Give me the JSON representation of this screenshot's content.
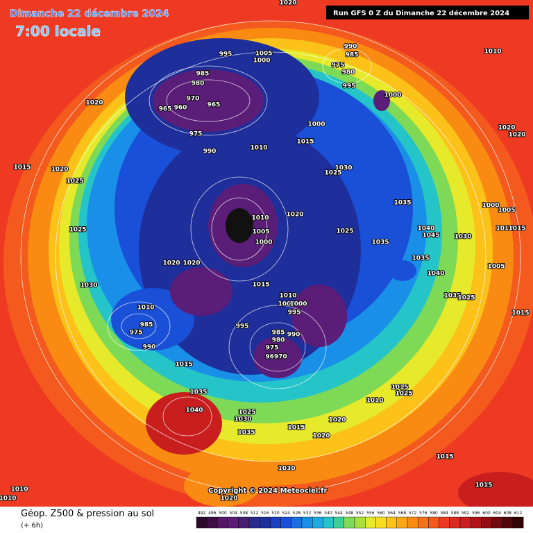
{
  "header": {
    "date": "Dimanche 22 décembre 2024",
    "time": "7:00 locale",
    "run": "Run GFS 0 Z du Dimanche 22 décembre 2024"
  },
  "copyright": "Copyright © 2024 Meteociel.fr",
  "footer": {
    "title": "Géop. Z500 & pression au sol",
    "lead": "(+ 6h)"
  },
  "legend": {
    "levels": [
      492,
      496,
      500,
      504,
      508,
      512,
      516,
      520,
      524,
      528,
      532,
      536,
      540,
      544,
      548,
      552,
      556,
      560,
      564,
      568,
      572,
      576,
      580,
      584,
      588,
      592,
      596,
      600,
      604,
      608,
      612
    ]
  },
  "isobar_labels": [
    "1020",
    "995",
    "1005",
    "1000",
    "990",
    "985",
    "975",
    "980",
    "995",
    "1010",
    "985",
    "980",
    "970",
    "965",
    "960",
    "965",
    "1000",
    "1020",
    "975",
    "990",
    "1010",
    "1015",
    "1000",
    "1020",
    "1020",
    "1015",
    "1020",
    "1025",
    "1030",
    "1025",
    "1035",
    "1000",
    "1005",
    "1010",
    "1015",
    "1025",
    "1020",
    "1010",
    "1005",
    "1000",
    "1025",
    "1040",
    "1045",
    "1030",
    "1035",
    "1035",
    "1005",
    "1020",
    "1020",
    "1040",
    "1030",
    "1015",
    "1010",
    "1005",
    "1000",
    "995",
    "1035",
    "1025",
    "1010",
    "995",
    "985",
    "990",
    "980",
    "975",
    "96970",
    "975",
    "985",
    "990",
    "1015",
    "1015",
    "1015",
    "1025",
    "1035",
    "1010",
    "1040",
    "1025",
    "1030",
    "1020",
    "1015",
    "1035",
    "1020",
    "1015",
    "1030",
    "1015",
    "1010",
    "1010",
    "1020"
  ]
}
